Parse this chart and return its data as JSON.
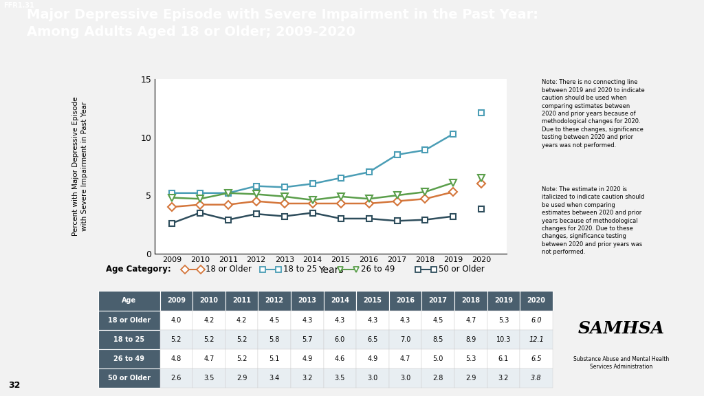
{
  "title_line1": "Major Depressive Episode with Severe Impairment in the Past Year:",
  "title_line2": "Among Adults Aged 18 or Older; 2009-2020",
  "title_tag": "FFR1.31",
  "title_bg": "#2e4d5c",
  "years_main": [
    2009,
    2010,
    2011,
    2012,
    2013,
    2014,
    2015,
    2016,
    2017,
    2018,
    2019
  ],
  "year_2020": 2020,
  "series_order": [
    "18 or Older",
    "18 to 25",
    "26 to 49",
    "50 or Older"
  ],
  "series": {
    "18 or Older": {
      "values_main": [
        4.0,
        4.2,
        4.2,
        4.5,
        4.3,
        4.3,
        4.3,
        4.3,
        4.5,
        4.7,
        5.3
      ],
      "value_2020": 6.0,
      "color": "#d4763b",
      "marker": "D"
    },
    "18 to 25": {
      "values_main": [
        5.2,
        5.2,
        5.2,
        5.8,
        5.7,
        6.0,
        6.5,
        7.0,
        8.5,
        8.9,
        10.3
      ],
      "value_2020": 12.1,
      "color": "#4a9db5",
      "marker": "s"
    },
    "26 to 49": {
      "values_main": [
        4.8,
        4.7,
        5.2,
        5.1,
        4.9,
        4.6,
        4.9,
        4.7,
        5.0,
        5.3,
        6.1
      ],
      "value_2020": 6.5,
      "color": "#5a9e4a",
      "marker": "v"
    },
    "50 or Older": {
      "values_main": [
        2.6,
        3.5,
        2.9,
        3.4,
        3.2,
        3.5,
        3.0,
        3.0,
        2.8,
        2.9,
        3.2
      ],
      "value_2020": 3.8,
      "color": "#2e4d5c",
      "marker": "s"
    }
  },
  "xlabel": "Years",
  "ylabel": "Percent with Major Depressive Episode\nwith Severe Impairment in Past Year",
  "ylim": [
    0,
    15
  ],
  "yticks": [
    0,
    5,
    10,
    15
  ],
  "note1": "Note: There is no connecting line\nbetween 2019 and 2020 to indicate\ncaution should be used when\ncomparing estimates between\n2020 and prior years because of\nmethodological changes for 2020.\nDue to these changes, significance\ntesting between 2020 and prior\nyears was not performed.",
  "note2": "Note: The estimate in 2020 is\nitalicized to indicate caution should\nbe used when comparing\nestimates between 2020 and prior\nyears because of methodological\nchanges for 2020. Due to these\nchanges, significance testing\nbetween 2020 and prior years was\nnot performed.",
  "table_header_bg": "#4a5f6e",
  "table_ages": [
    "18 or Older",
    "18 to 25",
    "26 to 49",
    "50 or Older"
  ],
  "table_years": [
    "2009",
    "2010",
    "2011",
    "2012",
    "2013",
    "2014",
    "2015",
    "2016",
    "2017",
    "2018",
    "2019",
    "2020"
  ],
  "table_data": [
    [
      4.0,
      4.2,
      4.2,
      4.5,
      4.3,
      4.3,
      4.3,
      4.3,
      4.5,
      4.7,
      5.3,
      6.0
    ],
    [
      5.2,
      5.2,
      5.2,
      5.8,
      5.7,
      6.0,
      6.5,
      7.0,
      8.5,
      8.9,
      10.3,
      12.1
    ],
    [
      4.8,
      4.7,
      5.2,
      5.1,
      4.9,
      4.6,
      4.9,
      4.7,
      5.0,
      5.3,
      6.1,
      6.5
    ],
    [
      2.6,
      3.5,
      2.9,
      3.4,
      3.2,
      3.5,
      3.0,
      3.0,
      2.8,
      2.9,
      3.2,
      3.8
    ]
  ],
  "page_bg": "#f2f2f2",
  "chart_bg": "#ffffff",
  "samhsa_text": "SAMHSA",
  "samhsa_sub": "Substance Abuse and Mental Health\nServices Administration"
}
